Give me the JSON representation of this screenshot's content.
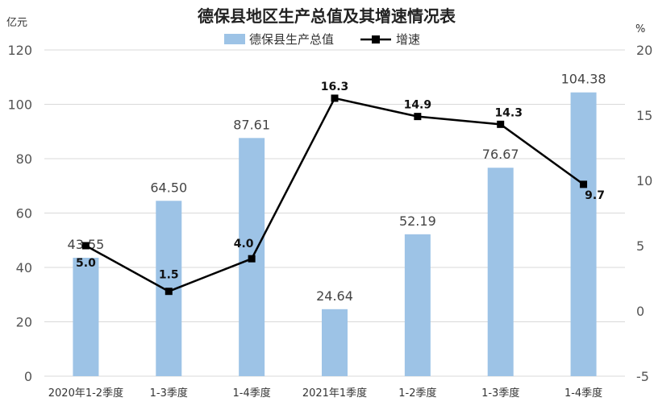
{
  "chart_data": {
    "type": "bar",
    "title": "德保县地区生产总值及其增速情况表",
    "left_axis_unit": "亿元",
    "right_axis_unit": "%",
    "categories": [
      "2020年1-2季度",
      "1-3季度",
      "1-4季度",
      "2021年1季度",
      "1-2季度",
      "1-3季度",
      "1-4季度"
    ],
    "series": [
      {
        "name": "德保县生产总值",
        "type": "bar",
        "axis": "left",
        "color": "#9dc3e6",
        "values": [
          43.55,
          64.5,
          87.61,
          24.64,
          52.19,
          76.67,
          104.38
        ],
        "labels": [
          "43.55",
          "64.50",
          "87.61",
          "24.64",
          "52.19",
          "76.67",
          "104.38"
        ]
      },
      {
        "name": "增速",
        "type": "line",
        "axis": "right",
        "color": "#000000",
        "values": [
          5.0,
          1.5,
          4.0,
          16.3,
          14.9,
          14.3,
          9.7
        ],
        "labels": [
          "5.0",
          "1.5",
          "4.0",
          "16.3",
          "14.9",
          "14.3",
          "9.7"
        ]
      }
    ],
    "left_ylim": [
      0,
      120
    ],
    "left_ticks": [
      "0",
      "20",
      "40",
      "60",
      "80",
      "100",
      "120"
    ],
    "right_ylim": [
      -5,
      20
    ],
    "right_ticks": [
      "-5",
      "0",
      "5",
      "10",
      "15",
      "20"
    ],
    "grid": true,
    "legend_position": "top-center"
  }
}
